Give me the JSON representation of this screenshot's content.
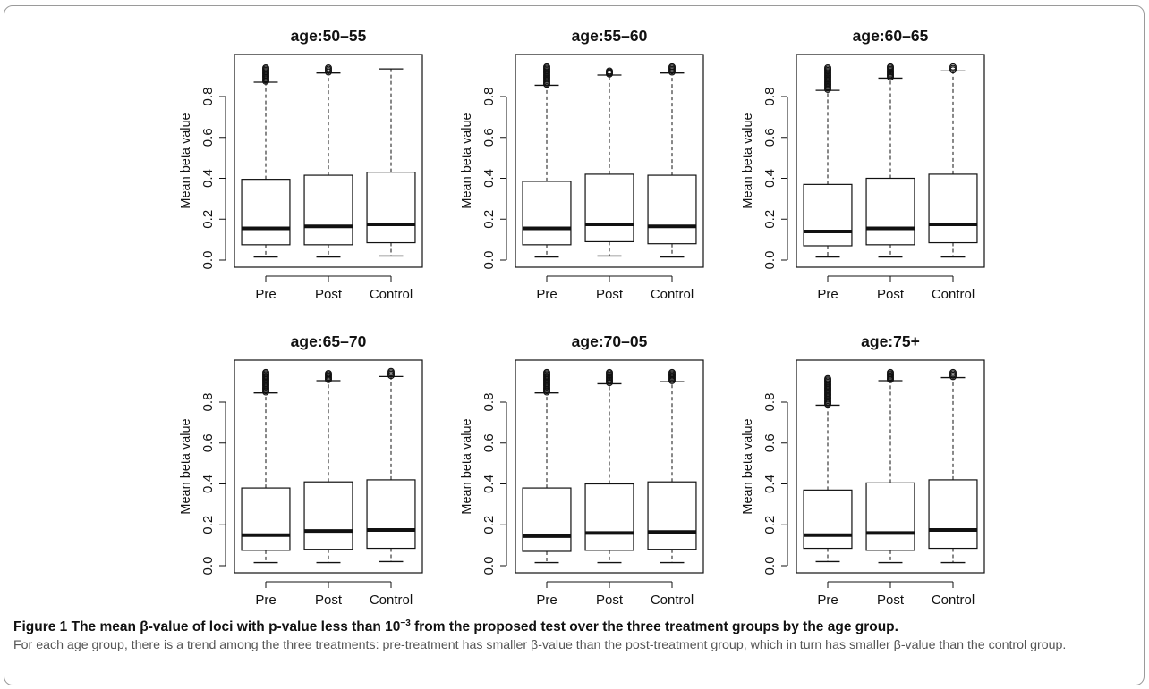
{
  "caption": {
    "label": "Figure 1",
    "bold_before": "The mean β-value of loci with p-value less than 10",
    "bold_sup": "−3",
    "bold_after": " from the proposed test over the three treatment groups by the age group.",
    "text": "For each age group, there is a trend among the three treatments: pre-treatment has smaller β-value than the post-treatment group, which in turn has smaller β-value than the control group."
  },
  "chart_data": [
    {
      "type": "boxplot",
      "title": "age:50–55",
      "ylabel": "Mean beta value",
      "categories": [
        "Pre",
        "Post",
        "Control"
      ],
      "ylim": [
        0,
        0.95
      ],
      "yticks": [
        "0.0",
        "0.2",
        "0.4",
        "0.6",
        "0.8"
      ],
      "boxes": [
        {
          "name": "Pre",
          "min": 0.015,
          "q1": 0.075,
          "median": 0.155,
          "q3": 0.395,
          "whisker_high": 0.87,
          "outliers_range": [
            0.875,
            0.94
          ]
        },
        {
          "name": "Post",
          "min": 0.015,
          "q1": 0.075,
          "median": 0.165,
          "q3": 0.415,
          "whisker_high": 0.915,
          "outliers_range": [
            0.92,
            0.94
          ]
        },
        {
          "name": "Control",
          "min": 0.02,
          "q1": 0.085,
          "median": 0.175,
          "q3": 0.43,
          "whisker_high": 0.935,
          "outliers_range": []
        }
      ]
    },
    {
      "type": "boxplot",
      "title": "age:55–60",
      "ylabel": "Mean beta value",
      "categories": [
        "Pre",
        "Post",
        "Control"
      ],
      "ylim": [
        0,
        0.95
      ],
      "yticks": [
        "0.0",
        "0.2",
        "0.4",
        "0.6",
        "0.8"
      ],
      "boxes": [
        {
          "name": "Pre",
          "min": 0.015,
          "q1": 0.075,
          "median": 0.155,
          "q3": 0.385,
          "whisker_high": 0.855,
          "outliers_range": [
            0.86,
            0.945
          ]
        },
        {
          "name": "Post",
          "min": 0.02,
          "q1": 0.09,
          "median": 0.175,
          "q3": 0.42,
          "whisker_high": 0.905,
          "outliers_range": [
            0.91,
            0.925
          ]
        },
        {
          "name": "Control",
          "min": 0.015,
          "q1": 0.08,
          "median": 0.165,
          "q3": 0.415,
          "whisker_high": 0.915,
          "outliers_range": [
            0.92,
            0.945
          ]
        }
      ]
    },
    {
      "type": "boxplot",
      "title": "age:60–65",
      "ylabel": "Mean beta value",
      "categories": [
        "Pre",
        "Post",
        "Control"
      ],
      "ylim": [
        0,
        0.95
      ],
      "yticks": [
        "0.0",
        "0.2",
        "0.4",
        "0.6",
        "0.8"
      ],
      "boxes": [
        {
          "name": "Pre",
          "min": 0.015,
          "q1": 0.07,
          "median": 0.14,
          "q3": 0.37,
          "whisker_high": 0.83,
          "outliers_range": [
            0.835,
            0.94
          ]
        },
        {
          "name": "Post",
          "min": 0.015,
          "q1": 0.075,
          "median": 0.155,
          "q3": 0.4,
          "whisker_high": 0.89,
          "outliers_range": [
            0.895,
            0.945
          ]
        },
        {
          "name": "Control",
          "min": 0.015,
          "q1": 0.085,
          "median": 0.175,
          "q3": 0.42,
          "whisker_high": 0.925,
          "outliers_range": [
            0.93,
            0.945
          ]
        }
      ]
    },
    {
      "type": "boxplot",
      "title": "age:65–70",
      "ylabel": "Mean beta value",
      "categories": [
        "Pre",
        "Post",
        "Control"
      ],
      "ylim": [
        0,
        0.95
      ],
      "yticks": [
        "0.0",
        "0.2",
        "0.4",
        "0.6",
        "0.8"
      ],
      "boxes": [
        {
          "name": "Pre",
          "min": 0.015,
          "q1": 0.075,
          "median": 0.15,
          "q3": 0.38,
          "whisker_high": 0.845,
          "outliers_range": [
            0.85,
            0.945
          ]
        },
        {
          "name": "Post",
          "min": 0.015,
          "q1": 0.08,
          "median": 0.17,
          "q3": 0.41,
          "whisker_high": 0.905,
          "outliers_range": [
            0.91,
            0.94
          ]
        },
        {
          "name": "Control",
          "min": 0.02,
          "q1": 0.085,
          "median": 0.175,
          "q3": 0.42,
          "whisker_high": 0.925,
          "outliers_range": [
            0.93,
            0.95
          ]
        }
      ]
    },
    {
      "type": "boxplot",
      "title": "age:70–05",
      "ylabel": "Mean beta value",
      "categories": [
        "Pre",
        "Post",
        "Control"
      ],
      "ylim": [
        0,
        0.95
      ],
      "yticks": [
        "0.0",
        "0.2",
        "0.4",
        "0.6",
        "0.8"
      ],
      "boxes": [
        {
          "name": "Pre",
          "min": 0.015,
          "q1": 0.07,
          "median": 0.145,
          "q3": 0.38,
          "whisker_high": 0.845,
          "outliers_range": [
            0.85,
            0.945
          ]
        },
        {
          "name": "Post",
          "min": 0.015,
          "q1": 0.075,
          "median": 0.16,
          "q3": 0.4,
          "whisker_high": 0.89,
          "outliers_range": [
            0.895,
            0.945
          ]
        },
        {
          "name": "Control",
          "min": 0.015,
          "q1": 0.08,
          "median": 0.165,
          "q3": 0.41,
          "whisker_high": 0.9,
          "outliers_range": [
            0.905,
            0.945
          ]
        }
      ]
    },
    {
      "type": "boxplot",
      "title": "age:75+",
      "ylabel": "Mean beta value",
      "categories": [
        "Pre",
        "Post",
        "Control"
      ],
      "ylim": [
        0,
        0.95
      ],
      "yticks": [
        "0.0",
        "0.2",
        "0.4",
        "0.6",
        "0.8"
      ],
      "boxes": [
        {
          "name": "Pre",
          "min": 0.02,
          "q1": 0.085,
          "median": 0.15,
          "q3": 0.37,
          "whisker_high": 0.785,
          "outliers_range": [
            0.79,
            0.915
          ]
        },
        {
          "name": "Post",
          "min": 0.015,
          "q1": 0.075,
          "median": 0.16,
          "q3": 0.405,
          "whisker_high": 0.905,
          "outliers_range": [
            0.91,
            0.945
          ]
        },
        {
          "name": "Control",
          "min": 0.015,
          "q1": 0.085,
          "median": 0.175,
          "q3": 0.42,
          "whisker_high": 0.92,
          "outliers_range": [
            0.925,
            0.945
          ]
        }
      ]
    }
  ]
}
